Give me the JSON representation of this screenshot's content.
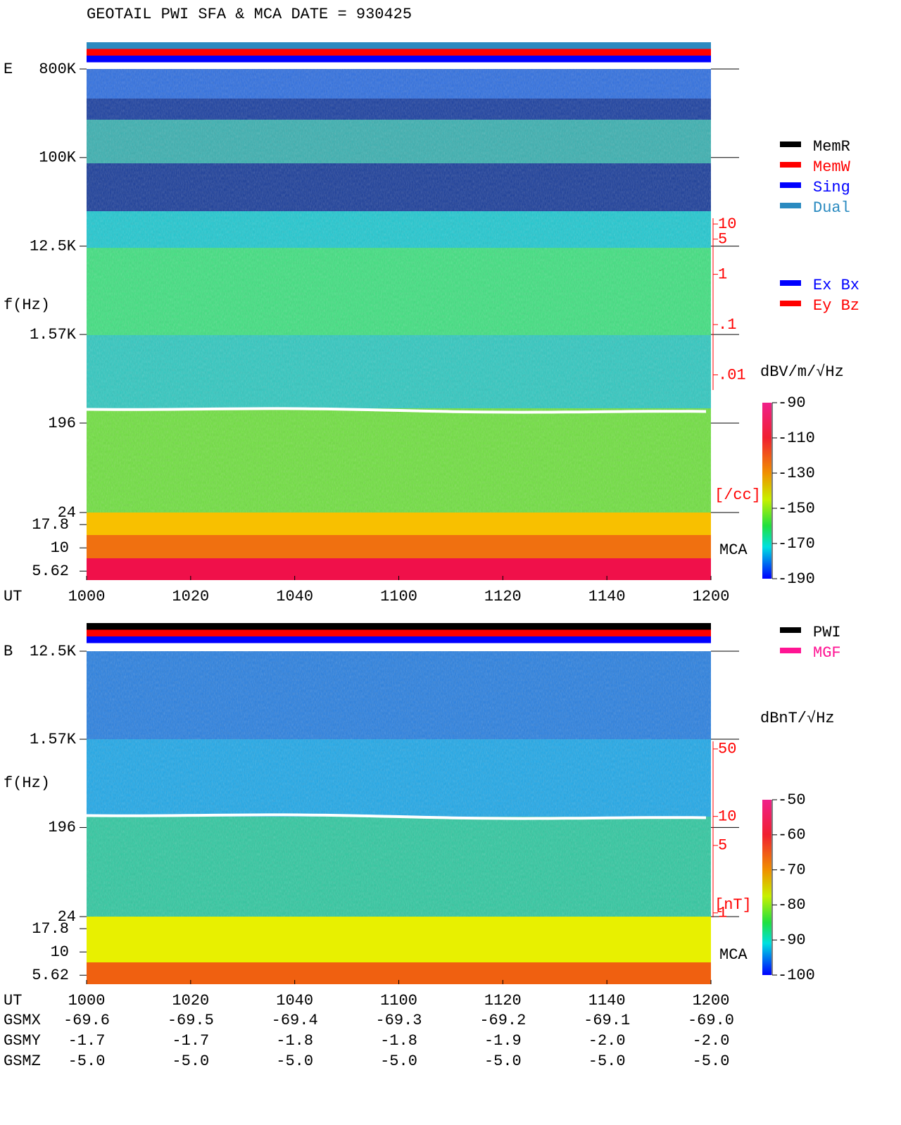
{
  "title": "GEOTAIL  PWI SFA & MCA   DATE = 930425",
  "chart_data": [
    {
      "type": "spectrogram",
      "label": "E",
      "ylabel": "f(Hz)",
      "xlabel": "UT",
      "log_y": true,
      "categories": [
        "1000",
        "1020",
        "1040",
        "1100",
        "1120",
        "1140",
        "1200"
      ],
      "ylim": [
        24,
        800000
      ],
      "yticks": [
        {
          "value": 800000,
          "label": "800K"
        },
        {
          "value": 100000,
          "label": "100K"
        },
        {
          "value": 12500,
          "label": "12.5K"
        },
        {
          "value": 1570,
          "label": "1.57K"
        },
        196,
        24
      ],
      "mca_label": "MCA",
      "mca_ylim": [
        4.5,
        24
      ],
      "mca_yticks": [
        17.8,
        10,
        5.62
      ],
      "y2label": "[/cc]",
      "y2lim": [
        0.005,
        13
      ],
      "y2ticks": [
        10,
        5,
        1,
        {
          "value": 0.1,
          "label": ".1"
        },
        {
          "value": 0.01,
          "label": ".01"
        }
      ],
      "colorbar_label": "dBV/m/√Hz",
      "clim": [
        -190,
        -90
      ],
      "cticks": [
        -90,
        -110,
        -130,
        -150,
        -170,
        -190
      ],
      "status_bars": [
        "#2a8ac0",
        "#ff0000",
        "#0000ff"
      ],
      "legend": [
        {
          "name": "MemR",
          "color": "#000000"
        },
        {
          "name": "MemW",
          "color": "#ff0000"
        },
        {
          "name": "Sing",
          "color": "#0000ff"
        },
        {
          "name": "Dual",
          "color": "#2a8ac0"
        }
      ],
      "legend2": [
        {
          "name": "Ex Bx",
          "color": "#0000ff"
        },
        {
          "name": "Ey Bz",
          "color": "#ff0000"
        }
      ]
    },
    {
      "type": "spectrogram",
      "label": "B",
      "ylabel": "f(Hz)",
      "xlabel": "UT",
      "log_y": true,
      "categories": [
        "1000",
        "1020",
        "1040",
        "1100",
        "1120",
        "1140",
        "1200"
      ],
      "ylim": [
        24,
        12500
      ],
      "yticks": [
        {
          "value": 12500,
          "label": "12.5K"
        },
        {
          "value": 1570,
          "label": "1.57K"
        },
        196,
        24
      ],
      "mca_label": "MCA",
      "mca_ylim": [
        4.5,
        24
      ],
      "mca_yticks": [
        17.8,
        10,
        5.62
      ],
      "y2label": "[nT]",
      "y2lim": [
        0.9,
        60
      ],
      "y2ticks": [
        50,
        10,
        5,
        1
      ],
      "colorbar_label": "dBnT/√Hz",
      "clim": [
        -100,
        -50
      ],
      "cticks": [
        -50,
        -60,
        -70,
        -80,
        -90,
        -100
      ],
      "status_bars": [
        "#000000",
        "#ff0000",
        "#0000ff"
      ],
      "legend": [
        {
          "name": "PWI",
          "color": "#000000"
        },
        {
          "name": "MGF",
          "color": "#ff1493"
        }
      ],
      "legend2": []
    }
  ],
  "orbit": [
    {
      "name": "GSMX",
      "values": [
        "-69.6",
        "-69.5",
        "-69.4",
        "-69.3",
        "-69.2",
        "-69.1",
        "-69.0"
      ]
    },
    {
      "name": "GSMY",
      "values": [
        "-1.7",
        "-1.7",
        "-1.8",
        "-1.8",
        "-1.9",
        "-2.0",
        "-2.0"
      ]
    },
    {
      "name": "GSMZ",
      "values": [
        "-5.0",
        "-5.0",
        "-5.0",
        "-5.0",
        "-5.0",
        "-5.0",
        "-5.0"
      ]
    }
  ]
}
